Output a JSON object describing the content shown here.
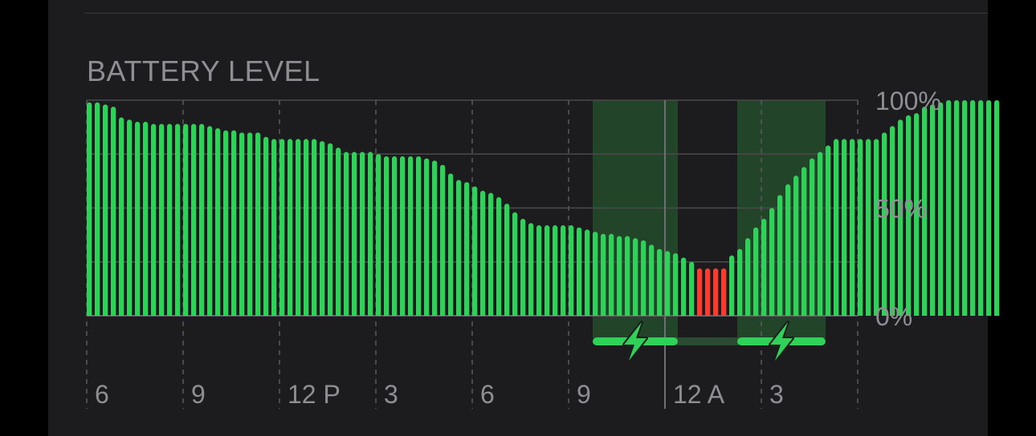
{
  "section": {
    "title": "BATTERY LEVEL"
  },
  "chart_data": {
    "type": "bar",
    "title": "BATTERY LEVEL",
    "y_tick_labels": [
      "100%",
      "50%",
      "0%"
    ],
    "x_tick_labels": [
      "6",
      "9",
      "12 P",
      "3",
      "6",
      "9",
      "12 A",
      "3"
    ],
    "ylim": [
      0,
      100
    ],
    "grid": true,
    "colors": {
      "normal": "#30d158",
      "low": "#ff3b30",
      "charging_band": "#22452a",
      "charging_bar": "#30d158",
      "grid": "#4a4a4c",
      "label": "#8e8e93",
      "bolt_outline": "#1c1c1e"
    },
    "low_threshold_note": "red bars indicate low battery",
    "charging_periods": [
      {
        "start_hour": 21.75,
        "end_hour": 24.4,
        "icon": "charging-bolt-icon"
      },
      {
        "start_hour": 26.25,
        "end_hour": 29.0,
        "icon": "charging-bolt-icon"
      }
    ],
    "start_hour": 6,
    "bar_interval_hours": 0.25,
    "values": [
      99,
      99,
      98,
      97,
      92,
      91,
      90,
      90,
      89,
      89,
      89,
      89,
      89,
      89,
      89,
      88,
      87,
      86,
      86,
      85,
      85,
      85,
      83,
      82,
      82,
      82,
      82,
      82,
      82,
      81,
      80,
      78,
      76,
      76,
      76,
      76,
      75,
      74,
      74,
      74,
      74,
      74,
      73,
      72,
      70,
      66,
      63,
      62,
      60,
      58,
      57,
      55,
      52,
      48,
      45,
      43,
      42,
      42,
      42,
      42,
      42,
      41,
      40,
      39,
      38,
      38,
      37,
      37,
      36,
      35,
      33,
      31,
      30,
      29,
      27,
      25,
      22,
      22,
      22,
      22,
      28,
      31,
      36,
      41,
      45,
      50,
      56,
      61,
      65,
      69,
      73,
      76,
      79,
      82,
      82,
      82,
      82,
      82,
      82,
      85,
      88,
      91,
      93,
      94,
      97,
      98,
      99,
      100,
      100,
      100,
      100,
      100,
      100,
      100
    ]
  }
}
